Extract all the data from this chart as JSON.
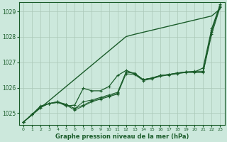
{
  "xlabel": "Graphe pression niveau de la mer (hPa)",
  "background_color": "#cce8dc",
  "plot_bg_color": "#cce8dc",
  "grid_color": "#aac8b8",
  "line_color": "#1a5c2a",
  "text_color": "#1a5c2a",
  "ylim": [
    1024.55,
    1029.35
  ],
  "xlim": [
    -0.5,
    23.5
  ],
  "yticks": [
    1025,
    1026,
    1027,
    1028,
    1029
  ],
  "xticks": [
    0,
    1,
    2,
    3,
    4,
    5,
    6,
    7,
    8,
    9,
    10,
    11,
    12,
    13,
    14,
    15,
    16,
    17,
    18,
    19,
    20,
    21,
    22,
    23
  ],
  "series_trend": [
    1024.65,
    1024.93,
    1025.21,
    1025.49,
    1025.77,
    1026.05,
    1026.33,
    1026.61,
    1026.89,
    1027.17,
    1027.45,
    1027.73,
    1028.01,
    1028.1,
    1028.18,
    1028.26,
    1028.34,
    1028.42,
    1028.5,
    1028.58,
    1028.66,
    1028.74,
    1028.82,
    1029.1
  ],
  "series_a": [
    1024.65,
    1024.95,
    1025.25,
    1025.38,
    1025.42,
    1025.35,
    1025.18,
    1025.32,
    1025.48,
    1025.58,
    1025.68,
    1025.78,
    1026.62,
    1026.58,
    1026.32,
    1026.38,
    1026.48,
    1026.52,
    1026.58,
    1026.62,
    1026.62,
    1026.62,
    1028.2,
    1029.22
  ],
  "series_b": [
    1024.65,
    1024.95,
    1025.22,
    1025.38,
    1025.42,
    1025.32,
    1025.12,
    1025.28,
    1025.45,
    1025.55,
    1025.65,
    1025.75,
    1026.55,
    1026.52,
    1026.28,
    1026.35,
    1026.45,
    1026.5,
    1026.55,
    1026.6,
    1026.6,
    1026.6,
    1028.1,
    1029.18
  ],
  "series_main": [
    1024.65,
    1024.95,
    1025.28,
    1025.38,
    1025.45,
    1025.28,
    1025.32,
    1025.98,
    1025.88,
    1025.88,
    1026.05,
    1026.48,
    1026.68,
    1026.55,
    1026.32,
    1026.38,
    1026.48,
    1026.52,
    1026.58,
    1026.62,
    1026.62,
    1026.78,
    1028.32,
    1029.28
  ],
  "series_c": [
    1024.65,
    1024.95,
    1025.25,
    1025.38,
    1025.45,
    1025.35,
    1025.18,
    1025.45,
    1025.52,
    1025.62,
    1025.72,
    1025.82,
    1026.62,
    1026.55,
    1026.32,
    1026.38,
    1026.48,
    1026.52,
    1026.58,
    1026.62,
    1026.65,
    1026.65,
    1028.25,
    1029.22
  ]
}
